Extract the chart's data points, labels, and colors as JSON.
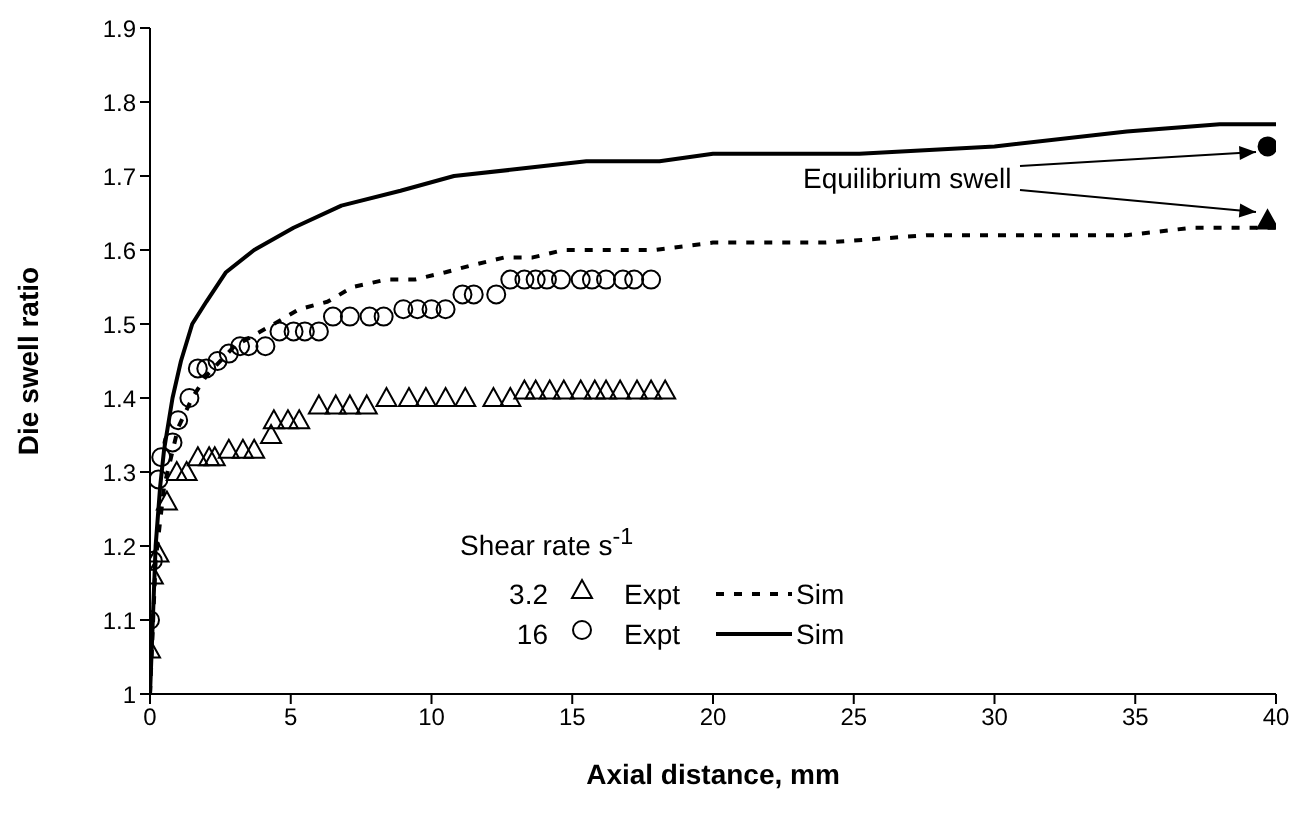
{
  "chart_data": {
    "type": "scatter",
    "xlabel": "Axial distance, mm",
    "ylabel": "Die swell ratio",
    "legend_title": "Shear rate s$^{-1}$",
    "annotations": [
      "3.2",
      "16",
      {
        "text": "Equilibrium swell",
        "x": 39.7,
        "y": 1.74
      }
    ],
    "xlim": [
      0,
      40
    ],
    "xticks": [
      0,
      5,
      10,
      15,
      20,
      25,
      30,
      35,
      40
    ],
    "ylim": [
      1,
      1.9
    ],
    "yticks": [
      1,
      1.1,
      1.2,
      1.3,
      1.4,
      1.5,
      1.6,
      1.7,
      1.8,
      1.9
    ],
    "legend": "bottom",
    "series": [
      {
        "name": "Expt",
        "marker": "triangle",
        "color": "#000000",
        "x": [
          0,
          0.1,
          0.3,
          0.6,
          0.95,
          1.3,
          1.7,
          2.1,
          2.3,
          2.8,
          3.3,
          3.7,
          4.3,
          4.4,
          4.9,
          5.3,
          6.0,
          6.6,
          7.1,
          7.7,
          8.4,
          9.2,
          9.8,
          10.5,
          11.2,
          12.2,
          12.8,
          13.3,
          13.7,
          14.2,
          14.7,
          15.3,
          15.8,
          16.2,
          16.7,
          17.3,
          17.8,
          18.3
        ],
        "values": [
          1.06,
          1.16,
          1.19,
          1.26,
          1.3,
          1.3,
          1.32,
          1.32,
          1.32,
          1.33,
          1.33,
          1.33,
          1.35,
          1.37,
          1.37,
          1.37,
          1.39,
          1.39,
          1.39,
          1.39,
          1.4,
          1.4,
          1.4,
          1.4,
          1.4,
          1.4,
          1.4,
          1.41,
          1.41,
          1.41,
          1.41,
          1.41,
          1.41,
          1.41,
          1.41,
          1.41,
          1.41,
          1.41
        ]
      },
      {
        "name": "Sim",
        "type": "line",
        "marker": "none",
        "line_style": "dashed",
        "color": "#000000",
        "x": [
          0,
          0.2,
          0.5,
          1,
          1.5,
          2,
          3,
          4.4,
          5.3,
          6.3,
          7.2,
          8.4,
          9.4,
          10.5,
          11.5,
          12.6,
          13.6,
          14.7,
          15.8,
          16.8,
          17.9,
          20,
          24,
          27.6,
          31,
          34.7,
          37,
          40
        ],
        "values": [
          1,
          1.18,
          1.28,
          1.36,
          1.4,
          1.43,
          1.47,
          1.5,
          1.52,
          1.53,
          1.55,
          1.56,
          1.56,
          1.57,
          1.58,
          1.59,
          1.59,
          1.6,
          1.6,
          1.6,
          1.6,
          1.61,
          1.61,
          1.62,
          1.62,
          1.62,
          1.63,
          1.63
        ]
      },
      {
        "name": "Expt",
        "marker": "circle",
        "color": "#000000",
        "x": [
          0,
          0.1,
          0.3,
          0.4,
          0.8,
          1.0,
          1.4,
          1.7,
          2.0,
          2.4,
          2.8,
          3.2,
          3.5,
          4.1,
          4.6,
          5.1,
          5.5,
          6.0,
          6.5,
          7.1,
          7.8,
          8.3,
          9.0,
          9.5,
          10.0,
          10.5,
          11.1,
          11.5,
          12.3,
          12.8,
          13.3,
          13.7,
          14.1,
          14.6,
          15.3,
          15.7,
          16.2,
          16.8,
          17.2,
          17.8
        ],
        "values": [
          1.1,
          1.18,
          1.29,
          1.32,
          1.34,
          1.37,
          1.4,
          1.44,
          1.44,
          1.45,
          1.46,
          1.47,
          1.47,
          1.47,
          1.49,
          1.49,
          1.49,
          1.49,
          1.51,
          1.51,
          1.51,
          1.51,
          1.52,
          1.52,
          1.52,
          1.52,
          1.54,
          1.54,
          1.54,
          1.56,
          1.56,
          1.56,
          1.56,
          1.56,
          1.56,
          1.56,
          1.56,
          1.56,
          1.56,
          1.56
        ]
      },
      {
        "name": "Sim",
        "type": "line",
        "marker": "none",
        "line_style": "solid",
        "color": "#000000",
        "x": [
          0,
          0.1,
          0.2,
          0.36,
          0.5,
          0.8,
          1.1,
          1.5,
          2,
          2.7,
          3.7,
          5.1,
          6.8,
          8.9,
          10.8,
          13.2,
          15.5,
          18.1,
          20,
          25.2,
          30,
          34.7,
          38,
          40
        ],
        "values": [
          1,
          1.1,
          1.2,
          1.28,
          1.33,
          1.4,
          1.45,
          1.5,
          1.53,
          1.57,
          1.6,
          1.63,
          1.66,
          1.68,
          1.7,
          1.71,
          1.72,
          1.72,
          1.73,
          1.73,
          1.74,
          1.76,
          1.77,
          1.77
        ]
      },
      {
        "marker": "triangle",
        "color": "#000000",
        "x": [
          39.7
        ],
        "values": [
          1.64
        ]
      },
      {
        "marker": "circle",
        "color": "#000000",
        "x": [
          39.7
        ],
        "values": [
          1.74
        ]
      }
    ]
  }
}
